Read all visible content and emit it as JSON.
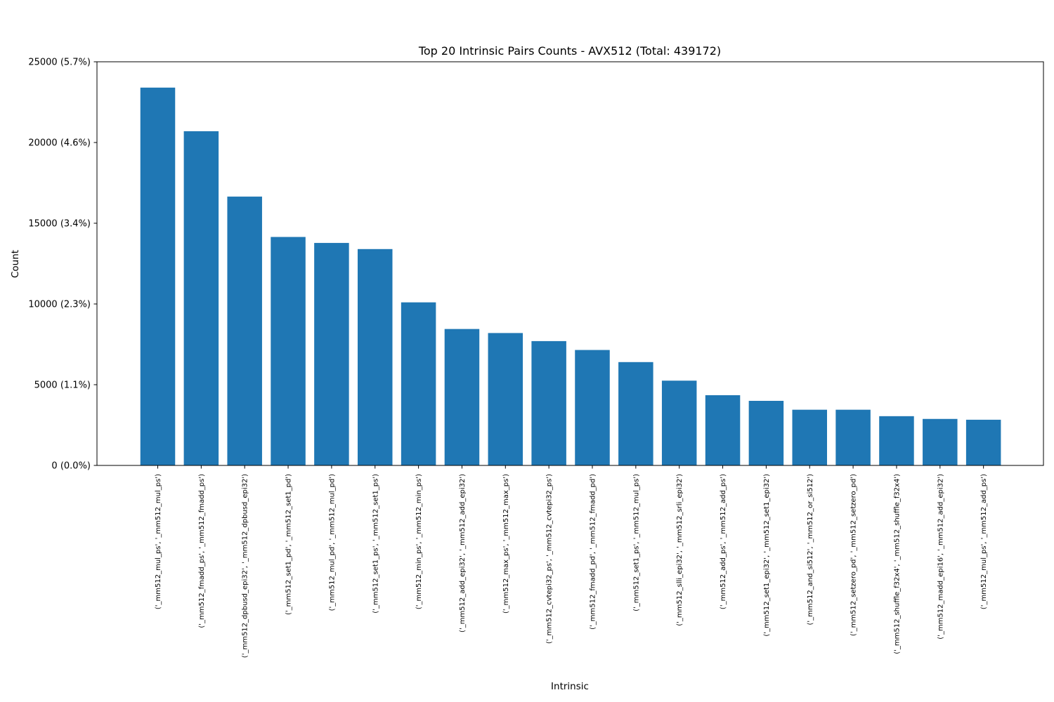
{
  "chart_data": {
    "type": "bar",
    "title": "Top 20 Intrinsic Pairs Counts - AVX512 (Total: 439172)",
    "xlabel": "Intrinsic",
    "ylabel": "Count",
    "total": 439172,
    "ylim": [
      0,
      25000
    ],
    "yticks": [
      0,
      5000,
      10000,
      15000,
      20000,
      25000
    ],
    "ytick_labels": [
      "0 (0.0%)",
      "5000 (1.1%)",
      "10000 (2.3%)",
      "15000 (3.4%)",
      "20000 (4.6%)",
      "25000 (5.7%)"
    ],
    "bar_color": "#1f77b4",
    "grid": false,
    "legend": "none",
    "categories": [
      "('_mm512_mul_ps', '_mm512_mul_ps')",
      "('_mm512_fmadd_ps', '_mm512_fmadd_ps')",
      "('_mm512_dpbusd_epi32', '_mm512_dpbusd_epi32')",
      "('_mm512_set1_pd', '_mm512_set1_pd')",
      "('_mm512_mul_pd', '_mm512_mul_pd')",
      "('_mm512_set1_ps', '_mm512_set1_ps')",
      "('_mm512_min_ps', '_mm512_min_ps')",
      "('_mm512_add_epi32', '_mm512_add_epi32')",
      "('_mm512_max_ps', '_mm512_max_ps')",
      "('_mm512_cvtepi32_ps', '_mm512_cvtepi32_ps')",
      "('_mm512_fmadd_pd', '_mm512_fmadd_pd')",
      "('_mm512_set1_ps', '_mm512_mul_ps')",
      "('_mm512_slli_epi32', '_mm512_srli_epi32')",
      "('_mm512_add_ps', '_mm512_add_ps')",
      "('_mm512_set1_epi32', '_mm512_set1_epi32')",
      "('_mm512_and_si512', '_mm512_or_si512')",
      "('_mm512_setzero_pd', '_mm512_setzero_pd')",
      "('_mm512_shuffle_f32x4', '_mm512_shuffle_f32x4')",
      "('_mm512_madd_epi16', '_mm512_add_epi32')",
      "('_mm512_mul_ps', '_mm512_add_ps')"
    ],
    "values": [
      23400,
      20700,
      16650,
      14150,
      13780,
      13400,
      10100,
      8450,
      8200,
      7700,
      7150,
      6400,
      5250,
      4350,
      4000,
      3450,
      3450,
      3050,
      2880,
      2830
    ]
  }
}
